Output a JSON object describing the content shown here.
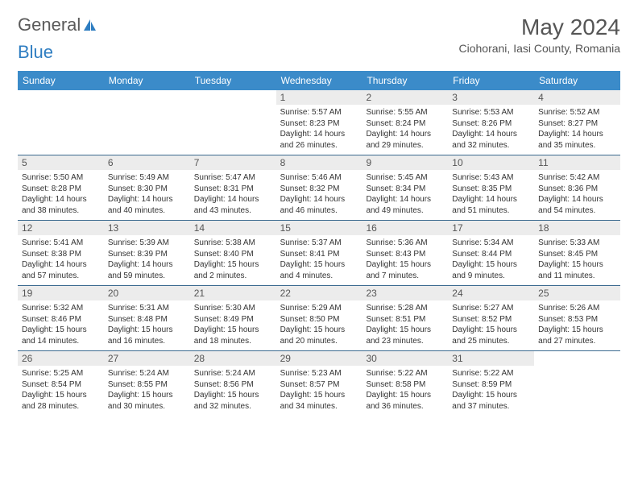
{
  "logo": {
    "text1": "General",
    "text2": "Blue"
  },
  "title": "May 2024",
  "location": "Ciohorani, Iasi County, Romania",
  "colors": {
    "header_bg": "#3b8bc9",
    "header_fg": "#ffffff",
    "daynum_bg": "#ececec",
    "text": "#333333",
    "title_color": "#555555",
    "divider": "#3b6a8f",
    "logo_gray": "#5a5a5a",
    "logo_blue": "#2e7dc1"
  },
  "typography": {
    "title_fontsize": 28,
    "location_fontsize": 14,
    "header_fontsize": 12,
    "daynum_fontsize": 12,
    "detail_fontsize": 10
  },
  "day_names": [
    "Sunday",
    "Monday",
    "Tuesday",
    "Wednesday",
    "Thursday",
    "Friday",
    "Saturday"
  ],
  "weeks": [
    [
      {
        "empty": true
      },
      {
        "empty": true
      },
      {
        "empty": true
      },
      {
        "day": "1",
        "sunrise": "Sunrise: 5:57 AM",
        "sunset": "Sunset: 8:23 PM",
        "daylight": "Daylight: 14 hours and 26 minutes."
      },
      {
        "day": "2",
        "sunrise": "Sunrise: 5:55 AM",
        "sunset": "Sunset: 8:24 PM",
        "daylight": "Daylight: 14 hours and 29 minutes."
      },
      {
        "day": "3",
        "sunrise": "Sunrise: 5:53 AM",
        "sunset": "Sunset: 8:26 PM",
        "daylight": "Daylight: 14 hours and 32 minutes."
      },
      {
        "day": "4",
        "sunrise": "Sunrise: 5:52 AM",
        "sunset": "Sunset: 8:27 PM",
        "daylight": "Daylight: 14 hours and 35 minutes."
      }
    ],
    [
      {
        "day": "5",
        "sunrise": "Sunrise: 5:50 AM",
        "sunset": "Sunset: 8:28 PM",
        "daylight": "Daylight: 14 hours and 38 minutes."
      },
      {
        "day": "6",
        "sunrise": "Sunrise: 5:49 AM",
        "sunset": "Sunset: 8:30 PM",
        "daylight": "Daylight: 14 hours and 40 minutes."
      },
      {
        "day": "7",
        "sunrise": "Sunrise: 5:47 AM",
        "sunset": "Sunset: 8:31 PM",
        "daylight": "Daylight: 14 hours and 43 minutes."
      },
      {
        "day": "8",
        "sunrise": "Sunrise: 5:46 AM",
        "sunset": "Sunset: 8:32 PM",
        "daylight": "Daylight: 14 hours and 46 minutes."
      },
      {
        "day": "9",
        "sunrise": "Sunrise: 5:45 AM",
        "sunset": "Sunset: 8:34 PM",
        "daylight": "Daylight: 14 hours and 49 minutes."
      },
      {
        "day": "10",
        "sunrise": "Sunrise: 5:43 AM",
        "sunset": "Sunset: 8:35 PM",
        "daylight": "Daylight: 14 hours and 51 minutes."
      },
      {
        "day": "11",
        "sunrise": "Sunrise: 5:42 AM",
        "sunset": "Sunset: 8:36 PM",
        "daylight": "Daylight: 14 hours and 54 minutes."
      }
    ],
    [
      {
        "day": "12",
        "sunrise": "Sunrise: 5:41 AM",
        "sunset": "Sunset: 8:38 PM",
        "daylight": "Daylight: 14 hours and 57 minutes."
      },
      {
        "day": "13",
        "sunrise": "Sunrise: 5:39 AM",
        "sunset": "Sunset: 8:39 PM",
        "daylight": "Daylight: 14 hours and 59 minutes."
      },
      {
        "day": "14",
        "sunrise": "Sunrise: 5:38 AM",
        "sunset": "Sunset: 8:40 PM",
        "daylight": "Daylight: 15 hours and 2 minutes."
      },
      {
        "day": "15",
        "sunrise": "Sunrise: 5:37 AM",
        "sunset": "Sunset: 8:41 PM",
        "daylight": "Daylight: 15 hours and 4 minutes."
      },
      {
        "day": "16",
        "sunrise": "Sunrise: 5:36 AM",
        "sunset": "Sunset: 8:43 PM",
        "daylight": "Daylight: 15 hours and 7 minutes."
      },
      {
        "day": "17",
        "sunrise": "Sunrise: 5:34 AM",
        "sunset": "Sunset: 8:44 PM",
        "daylight": "Daylight: 15 hours and 9 minutes."
      },
      {
        "day": "18",
        "sunrise": "Sunrise: 5:33 AM",
        "sunset": "Sunset: 8:45 PM",
        "daylight": "Daylight: 15 hours and 11 minutes."
      }
    ],
    [
      {
        "day": "19",
        "sunrise": "Sunrise: 5:32 AM",
        "sunset": "Sunset: 8:46 PM",
        "daylight": "Daylight: 15 hours and 14 minutes."
      },
      {
        "day": "20",
        "sunrise": "Sunrise: 5:31 AM",
        "sunset": "Sunset: 8:48 PM",
        "daylight": "Daylight: 15 hours and 16 minutes."
      },
      {
        "day": "21",
        "sunrise": "Sunrise: 5:30 AM",
        "sunset": "Sunset: 8:49 PM",
        "daylight": "Daylight: 15 hours and 18 minutes."
      },
      {
        "day": "22",
        "sunrise": "Sunrise: 5:29 AM",
        "sunset": "Sunset: 8:50 PM",
        "daylight": "Daylight: 15 hours and 20 minutes."
      },
      {
        "day": "23",
        "sunrise": "Sunrise: 5:28 AM",
        "sunset": "Sunset: 8:51 PM",
        "daylight": "Daylight: 15 hours and 23 minutes."
      },
      {
        "day": "24",
        "sunrise": "Sunrise: 5:27 AM",
        "sunset": "Sunset: 8:52 PM",
        "daylight": "Daylight: 15 hours and 25 minutes."
      },
      {
        "day": "25",
        "sunrise": "Sunrise: 5:26 AM",
        "sunset": "Sunset: 8:53 PM",
        "daylight": "Daylight: 15 hours and 27 minutes."
      }
    ],
    [
      {
        "day": "26",
        "sunrise": "Sunrise: 5:25 AM",
        "sunset": "Sunset: 8:54 PM",
        "daylight": "Daylight: 15 hours and 28 minutes."
      },
      {
        "day": "27",
        "sunrise": "Sunrise: 5:24 AM",
        "sunset": "Sunset: 8:55 PM",
        "daylight": "Daylight: 15 hours and 30 minutes."
      },
      {
        "day": "28",
        "sunrise": "Sunrise: 5:24 AM",
        "sunset": "Sunset: 8:56 PM",
        "daylight": "Daylight: 15 hours and 32 minutes."
      },
      {
        "day": "29",
        "sunrise": "Sunrise: 5:23 AM",
        "sunset": "Sunset: 8:57 PM",
        "daylight": "Daylight: 15 hours and 34 minutes."
      },
      {
        "day": "30",
        "sunrise": "Sunrise: 5:22 AM",
        "sunset": "Sunset: 8:58 PM",
        "daylight": "Daylight: 15 hours and 36 minutes."
      },
      {
        "day": "31",
        "sunrise": "Sunrise: 5:22 AM",
        "sunset": "Sunset: 8:59 PM",
        "daylight": "Daylight: 15 hours and 37 minutes."
      },
      {
        "empty": true
      }
    ]
  ]
}
